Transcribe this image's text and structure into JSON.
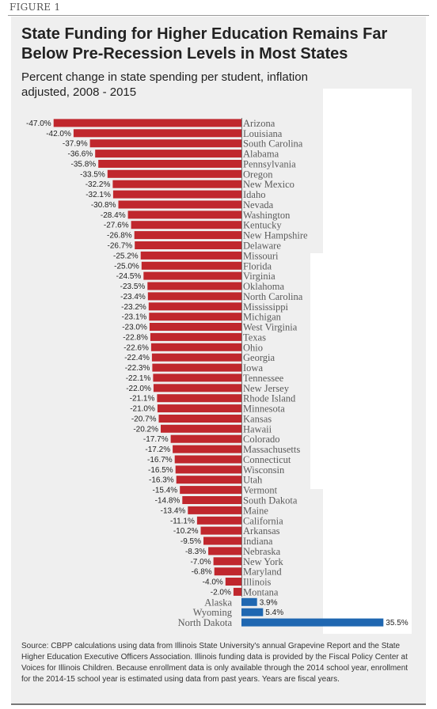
{
  "figure_label": "FIGURE 1",
  "title": "State Funding for Higher Education Remains Far Below Pre-Recession Levels in Most States",
  "subtitle": "Percent change in state spending per student, inflation adjusted, 2008 - 2015",
  "source": "Source: CBPP calculations using data from Illinois State University's annual Grapevine Report and the State Higher Education Executive Officers Association.  Illinois funding data is provided by the Fiscal Policy Center at Voices for Illinois Children.  Because enrollment data is only available through the 2014 school year, enrollment for the 2014-15 school year is estimated using data from past years. Years are fiscal years.",
  "colors": {
    "negative": "#c0272d",
    "positive": "#1f67b1",
    "panel": "#efefef"
  },
  "chart_data": {
    "type": "bar",
    "orientation": "horizontal",
    "title": "State Funding for Higher Education Remains Far Below Pre-Recession Levels in Most States",
    "subtitle": "Percent change in state spending per student, inflation adjusted, 2008 - 2015",
    "xlim": [
      -47.0,
      35.5
    ],
    "grid": false,
    "categories": [
      "Arizona",
      "Louisiana",
      "South Carolina",
      "Alabama",
      "Pennsylvania",
      "Oregon",
      "New Mexico",
      "Idaho",
      "Nevada",
      "Washington",
      "Kentucky",
      "New Hampshire",
      "Delaware",
      "Missouri",
      "Florida",
      "Virginia",
      "Oklahoma",
      "North Carolina",
      "Mississippi",
      "Michigan",
      "West Virginia",
      "Texas",
      "Ohio",
      "Georgia",
      "Iowa",
      "Tennessee",
      "New Jersey",
      "Rhode Island",
      "Minnesota",
      "Kansas",
      "Hawaii",
      "Colorado",
      "Massachusetts",
      "Connecticut",
      "Wisconsin",
      "Utah",
      "Vermont",
      "South Dakota",
      "Maine",
      "California",
      "Arkansas",
      "Indiana",
      "Nebraska",
      "New York",
      "Maryland",
      "Illinois",
      "Montana",
      "Alaska",
      "Wyoming",
      "North Dakota"
    ],
    "values": [
      -47.0,
      -42.0,
      -37.9,
      -36.6,
      -35.8,
      -33.5,
      -32.2,
      -32.1,
      -30.8,
      -28.4,
      -27.6,
      -26.8,
      -26.7,
      -25.2,
      -25.0,
      -24.5,
      -23.5,
      -23.4,
      -23.2,
      -23.1,
      -23.0,
      -22.8,
      -22.6,
      -22.4,
      -22.3,
      -22.1,
      -22.0,
      -21.1,
      -21.0,
      -20.7,
      -20.2,
      -17.7,
      -17.2,
      -16.7,
      -16.5,
      -16.3,
      -15.4,
      -14.8,
      -13.4,
      -11.1,
      -10.2,
      -9.5,
      -8.3,
      -7.0,
      -6.8,
      -4.0,
      -2.0,
      3.9,
      5.4,
      35.5
    ],
    "data_labels": [
      "-47.0%",
      "-42.0%",
      "-37.9%",
      "-36.6%",
      "-35.8%",
      "-33.5%",
      "-32.2%",
      "-32.1%",
      "-30.8%",
      "-28.4%",
      "-27.6%",
      "-26.8%",
      "-26.7%",
      "-25.2%",
      "-25.0%",
      "-24.5%",
      "-23.5%",
      "-23.4%",
      "-23.2%",
      "-23.1%",
      "-23.0%",
      "-22.8%",
      "-22.6%",
      "-22.4%",
      "-22.3%",
      "-22.1%",
      "-22.0%",
      "-21.1%",
      "-21.0%",
      "-20.7%",
      "-20.2%",
      "-17.7%",
      "-17.2%",
      "-16.7%",
      "-16.5%",
      "-16.3%",
      "-15.4%",
      "-14.8%",
      "-13.4%",
      "-11.1%",
      "-10.2%",
      "-9.5%",
      "-8.3%",
      "-7.0%",
      "-6.8%",
      "-4.0%",
      "-2.0%",
      "3.9%",
      "5.4%",
      "35.5%"
    ]
  }
}
